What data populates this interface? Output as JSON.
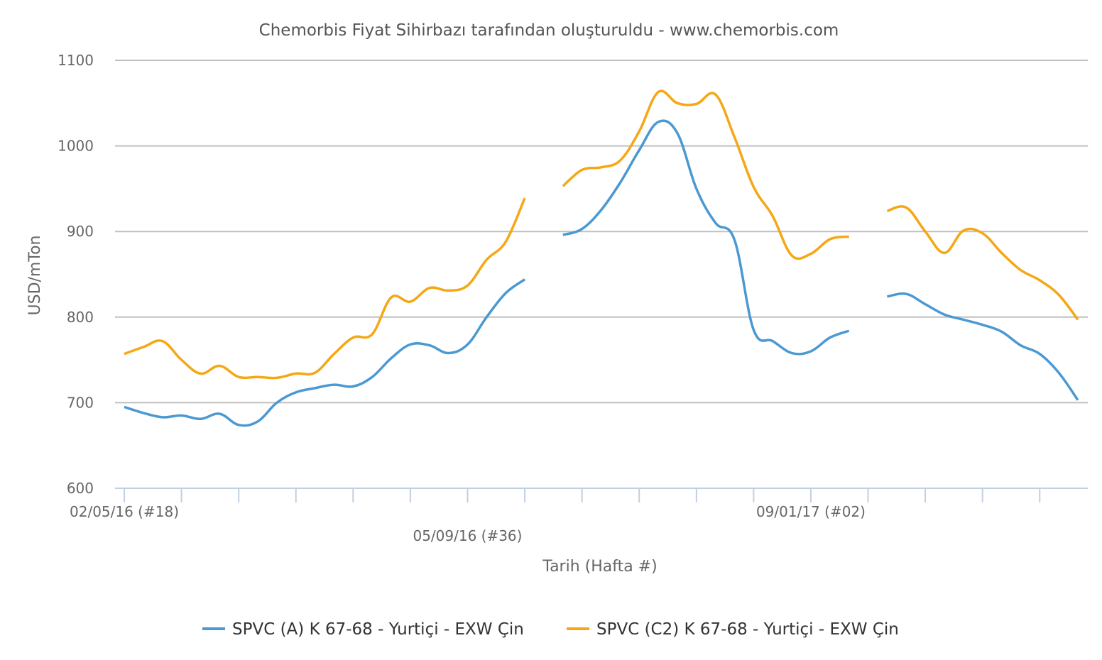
{
  "chart_data": {
    "type": "line",
    "title": "Chemorbis Fiyat Sihirbazı tarafından oluşturuldu - www.chemorbis.com",
    "xlabel": "Tarih (Hafta #)",
    "ylabel": "USD/mTon",
    "ylim": [
      600,
      1100
    ],
    "yticks": [
      "600",
      "700",
      "800",
      "900",
      "1000",
      "1100"
    ],
    "x_tick_labels": [
      {
        "label": "02/05/16 (#18)",
        "week_index": 0
      },
      {
        "label": "05/09/16 (#36)",
        "week_index": 18
      },
      {
        "label": "09/01/17 (#02)",
        "week_index": 36
      }
    ],
    "x_range_weeks": [
      0,
      50
    ],
    "grid": true,
    "legend_position": "bottom",
    "series": [
      {
        "name": "SPVC (A) K 67-68 - Yurtiçi - EXW Çin",
        "color": "#4b99d2",
        "segments": [
          [
            [
              0,
              695
            ],
            [
              1,
              688
            ],
            [
              2,
              683
            ],
            [
              3,
              685
            ],
            [
              4,
              681
            ],
            [
              5,
              687
            ],
            [
              6,
              674
            ],
            [
              7,
              678
            ],
            [
              8,
              700
            ],
            [
              9,
              712
            ],
            [
              10,
              717
            ],
            [
              11,
              721
            ],
            [
              12,
              719
            ],
            [
              13,
              730
            ],
            [
              14,
              752
            ],
            [
              15,
              768
            ],
            [
              16,
              767
            ],
            [
              17,
              758
            ],
            [
              18,
              768
            ],
            [
              19,
              800
            ],
            [
              20,
              828
            ],
            [
              21,
              844
            ]
          ],
          [
            [
              23,
              896
            ],
            [
              24,
              903
            ],
            [
              25,
              925
            ],
            [
              26,
              957
            ],
            [
              27,
              995
            ],
            [
              28,
              1028
            ],
            [
              29,
              1015
            ],
            [
              30,
              950
            ],
            [
              31,
              910
            ],
            [
              32,
              890
            ],
            [
              33,
              785
            ],
            [
              34,
              772
            ],
            [
              35,
              758
            ],
            [
              36,
              760
            ],
            [
              37,
              776
            ],
            [
              38,
              784
            ]
          ],
          [
            [
              40,
              824
            ],
            [
              41,
              827
            ],
            [
              42,
              815
            ],
            [
              43,
              803
            ],
            [
              44,
              797
            ],
            [
              45,
              791
            ],
            [
              46,
              783
            ],
            [
              47,
              767
            ],
            [
              48,
              757
            ],
            [
              49,
              735
            ],
            [
              50,
              703
            ]
          ]
        ]
      },
      {
        "name": "SPVC (C2) K 67-68 - Yurtiçi - EXW Çin",
        "color": "#f5a714",
        "segments": [
          [
            [
              0,
              757
            ],
            [
              1,
              765
            ],
            [
              2,
              772
            ],
            [
              3,
              750
            ],
            [
              4,
              734
            ],
            [
              5,
              743
            ],
            [
              6,
              730
            ],
            [
              7,
              730
            ],
            [
              8,
              729
            ],
            [
              9,
              734
            ],
            [
              10,
              735
            ],
            [
              11,
              757
            ],
            [
              12,
              776
            ],
            [
              13,
              780
            ],
            [
              14,
              823
            ],
            [
              15,
              818
            ],
            [
              16,
              834
            ],
            [
              17,
              831
            ],
            [
              18,
              837
            ],
            [
              19,
              867
            ],
            [
              20,
              888
            ],
            [
              21,
              939
            ]
          ],
          [
            [
              23,
              953
            ],
            [
              24,
              972
            ],
            [
              25,
              975
            ],
            [
              26,
              983
            ],
            [
              27,
              1017
            ],
            [
              28,
              1063
            ],
            [
              29,
              1050
            ],
            [
              30,
              1049
            ],
            [
              31,
              1060
            ],
            [
              32,
              1010
            ],
            [
              33,
              952
            ],
            [
              34,
              918
            ],
            [
              35,
              872
            ],
            [
              36,
              874
            ],
            [
              37,
              891
            ],
            [
              38,
              894
            ]
          ],
          [
            [
              40,
              924
            ],
            [
              41,
              928
            ],
            [
              42,
              900
            ],
            [
              43,
              875
            ],
            [
              44,
              901
            ],
            [
              45,
              898
            ],
            [
              46,
              875
            ],
            [
              47,
              855
            ],
            [
              48,
              843
            ],
            [
              49,
              826
            ],
            [
              50,
              797
            ]
          ]
        ]
      }
    ]
  }
}
